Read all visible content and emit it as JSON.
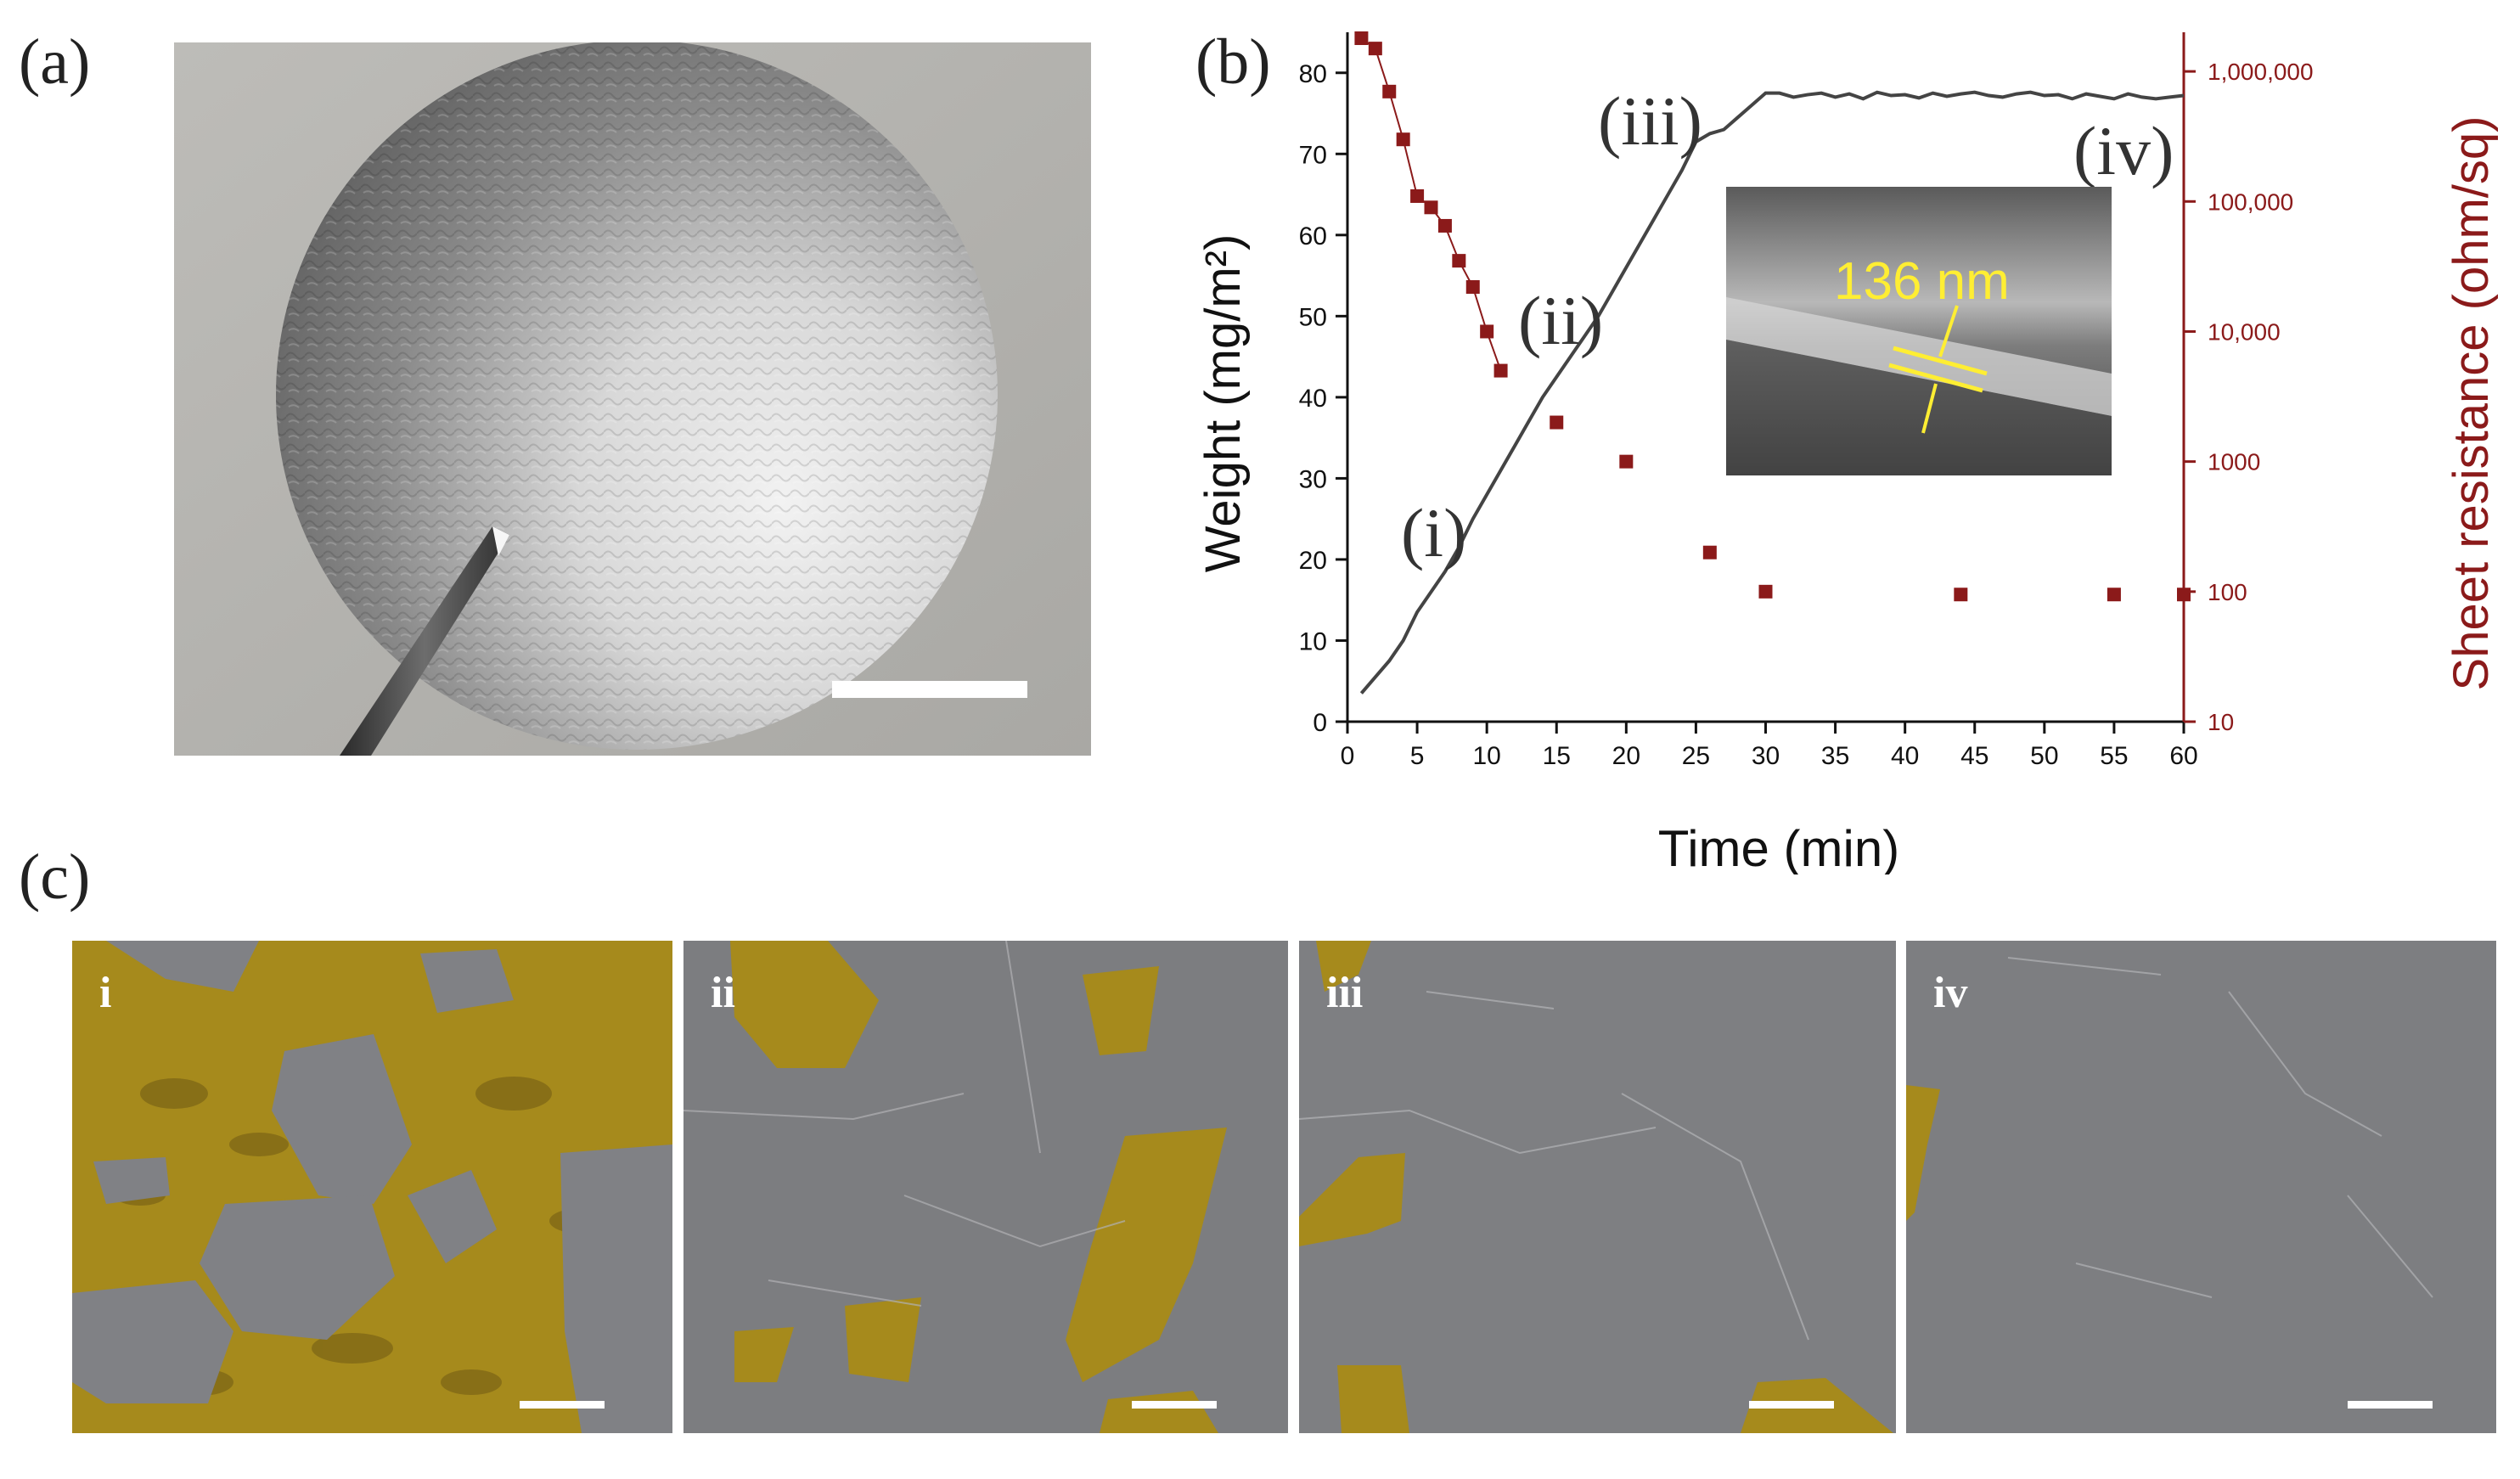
{
  "panel_labels": {
    "a": "(a)",
    "b": "(b)",
    "c": "(c)"
  },
  "chart_data": {
    "type": "line",
    "xlabel": "Time (min)",
    "ylabel": "Weight (mg/m²)",
    "ylabel_right": "Sheet resistance (ohm/sq)",
    "xlim": [
      0,
      60
    ],
    "ylim": [
      0,
      85
    ],
    "ylim_right": [
      10,
      2000000
    ],
    "y_right_scale": "log",
    "x_ticks": [
      "0",
      "5",
      "10",
      "15",
      "20",
      "25",
      "30",
      "35",
      "40",
      "45",
      "50",
      "55",
      "60"
    ],
    "y_ticks": [
      "0",
      "10",
      "20",
      "30",
      "40",
      "50",
      "60",
      "70",
      "80"
    ],
    "y_right_ticks": [
      "10",
      "100",
      "1000",
      "10,000",
      "100,000",
      "1,000,000"
    ],
    "series": [
      {
        "axis": "left",
        "style": "line",
        "color": "#444444",
        "x": [
          1,
          2,
          3,
          4,
          5,
          6,
          7,
          8,
          9,
          10,
          11,
          12,
          13,
          14,
          15,
          16,
          17,
          18,
          19,
          20,
          21,
          22,
          23,
          24,
          25,
          26,
          27,
          28,
          29,
          30,
          31,
          32,
          33,
          34,
          35,
          36,
          37,
          38,
          39,
          40,
          41,
          42,
          43,
          44,
          45,
          46,
          47,
          48,
          49,
          50,
          51,
          52,
          53,
          54,
          55,
          56,
          57,
          58,
          59,
          60
        ],
        "y": [
          3.5,
          5.5,
          7.5,
          10,
          13.5,
          16,
          18.5,
          21.5,
          25,
          28,
          31,
          34,
          37,
          40,
          42.5,
          45,
          47.5,
          50,
          53,
          56,
          59,
          62,
          65,
          68,
          71.5,
          72.5,
          73,
          74.5,
          76,
          77.5,
          77.5,
          77,
          77.3,
          77.5,
          77,
          77.4,
          76.8,
          77.6,
          77.2,
          77.3,
          76.9,
          77.5,
          77.1,
          77.4,
          77.6,
          77.2,
          77.0,
          77.4,
          77.6,
          77.2,
          77.3,
          76.8,
          77.4,
          77.1,
          76.8,
          77.4,
          77.0,
          76.8,
          77.0,
          77.2
        ]
      },
      {
        "axis": "right",
        "style": "scatter",
        "color": "#8b1a1a",
        "x": [
          1,
          2,
          3,
          4,
          5,
          6,
          7,
          8,
          9,
          10,
          11,
          15,
          20,
          26,
          30,
          44,
          55,
          60
        ],
        "y": [
          1800000,
          1500000,
          700000,
          300000,
          110000,
          90000,
          65000,
          35000,
          22000,
          10000,
          5000,
          2000,
          1000,
          200,
          100,
          95,
          95,
          95
        ]
      }
    ],
    "annotations": [
      "(i)",
      "(ii)",
      "(iii)",
      "(iv)"
    ],
    "inset_label": "136 nm"
  },
  "sem_panels": [
    {
      "label": "i"
    },
    {
      "label": "ii"
    },
    {
      "label": "iii"
    },
    {
      "label": "iv"
    }
  ],
  "colors": {
    "highlight": "#a68a1c",
    "sem_gray": "#7c7d80",
    "resistance": "#8b1a1a"
  }
}
